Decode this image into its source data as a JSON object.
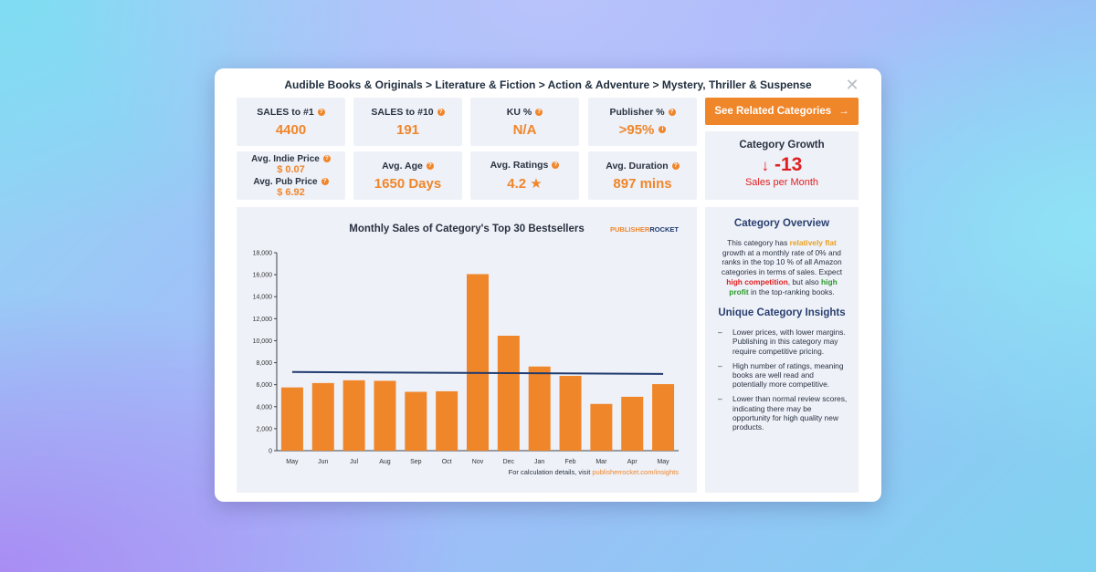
{
  "breadcrumb": "Audible Books & Originals > Literature & Fiction > Action & Adventure > Mystery, Thriller & Suspense",
  "close_glyph": "✕",
  "stats": {
    "sales1": {
      "label": "SALES to #1",
      "value": "4400"
    },
    "sales10": {
      "label": "SALES to #10",
      "value": "191"
    },
    "ku": {
      "label": "KU %",
      "value": "N/A"
    },
    "publisher": {
      "label": "Publisher %",
      "value": ">95%"
    },
    "indie": {
      "label": "Avg. Indie Price",
      "value": "$ 0.07"
    },
    "pub": {
      "label": "Avg. Pub Price",
      "value": "$ 6.92"
    },
    "age": {
      "label": "Avg. Age",
      "value": "1650 Days"
    },
    "ratings": {
      "label": "Avg. Ratings",
      "value": "4.2 ★"
    },
    "duration": {
      "label": "Avg. Duration",
      "value": "897 mins"
    }
  },
  "related_button": {
    "label": "See Related Categories",
    "arrow": "→"
  },
  "growth": {
    "title": "Category Growth",
    "arrow": "↓",
    "value": "-13",
    "sub": "Sales per Month"
  },
  "overview": {
    "title": "Category Overview",
    "p1": "This category has ",
    "flat": "relatively flat",
    "p2": " growth at a monthly rate of 0% and ranks in the top 10 % of all Amazon categories in terms of sales. Expect ",
    "comp": "high competition",
    "p3": ", but also ",
    "profit": "high profit",
    "p4": " in the top-ranking books."
  },
  "insights": {
    "title": "Unique Category Insights",
    "items": [
      "Lower prices, with lower margins. Publishing in this category may require competitive pricing.",
      "High number of ratings, meaning books are well read and potentially more competitive.",
      "Lower than normal review scores, indicating there may be opportunity for high quality new products."
    ]
  },
  "colors": {
    "accent": "#f0862a",
    "trend": "#1f3a6e",
    "negative": "#e02020"
  },
  "chart_data": {
    "type": "bar",
    "title": "Monthly Sales of Category's Top 30 Bestsellers",
    "brand": {
      "publisher": "PUBLISHER",
      "rocket": "ROCKET"
    },
    "categories": [
      "May",
      "Jun",
      "Jul",
      "Aug",
      "Sep",
      "Oct",
      "Nov",
      "Dec",
      "Jan",
      "Feb",
      "Mar",
      "Apr",
      "May"
    ],
    "values": [
      5750,
      6150,
      6400,
      6350,
      5350,
      5400,
      16050,
      10450,
      7650,
      6800,
      4250,
      4900,
      6050
    ],
    "trend": {
      "start": 7150,
      "end": 6980
    },
    "ylim": [
      0,
      18000
    ],
    "yticks": [
      "0",
      "2,000",
      "4,000",
      "6,000",
      "8,000",
      "10,000",
      "12,000",
      "14,000",
      "16,000",
      "18,000"
    ],
    "footnote": "For calculation details, visit ",
    "footnote_link": "publisherrocket.com/insights"
  }
}
